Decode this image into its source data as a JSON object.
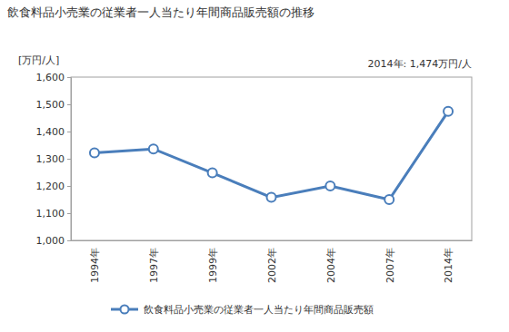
{
  "chart_data": {
    "type": "line",
    "title": "飲食料品小売業の従業者一人当たり年間商品販売額の推移",
    "y_label": "[万円/人]",
    "annotation": "2014年: 1,474万円/人",
    "categories": [
      "1994年",
      "1997年",
      "1999年",
      "2002年",
      "2004年",
      "2007年",
      "2014年"
    ],
    "series": [
      {
        "name": "飲食料品小売業の従業者一人当たり年間商品販売額",
        "color": "#4a7ebb",
        "marker": "circle",
        "values": [
          1322,
          1336,
          1248,
          1158,
          1200,
          1150,
          1474
        ]
      }
    ],
    "ylim": [
      1000,
      1600
    ],
    "yticks": [
      {
        "value": 1000,
        "label": "1,000"
      },
      {
        "value": 1100,
        "label": "1,100"
      },
      {
        "value": 1200,
        "label": "1,200"
      },
      {
        "value": 1300,
        "label": "1,300"
      },
      {
        "value": 1400,
        "label": "1,400"
      },
      {
        "value": 1500,
        "label": "1,500"
      },
      {
        "value": 1600,
        "label": "1,600"
      }
    ],
    "grid": false,
    "legend": "bottom"
  }
}
